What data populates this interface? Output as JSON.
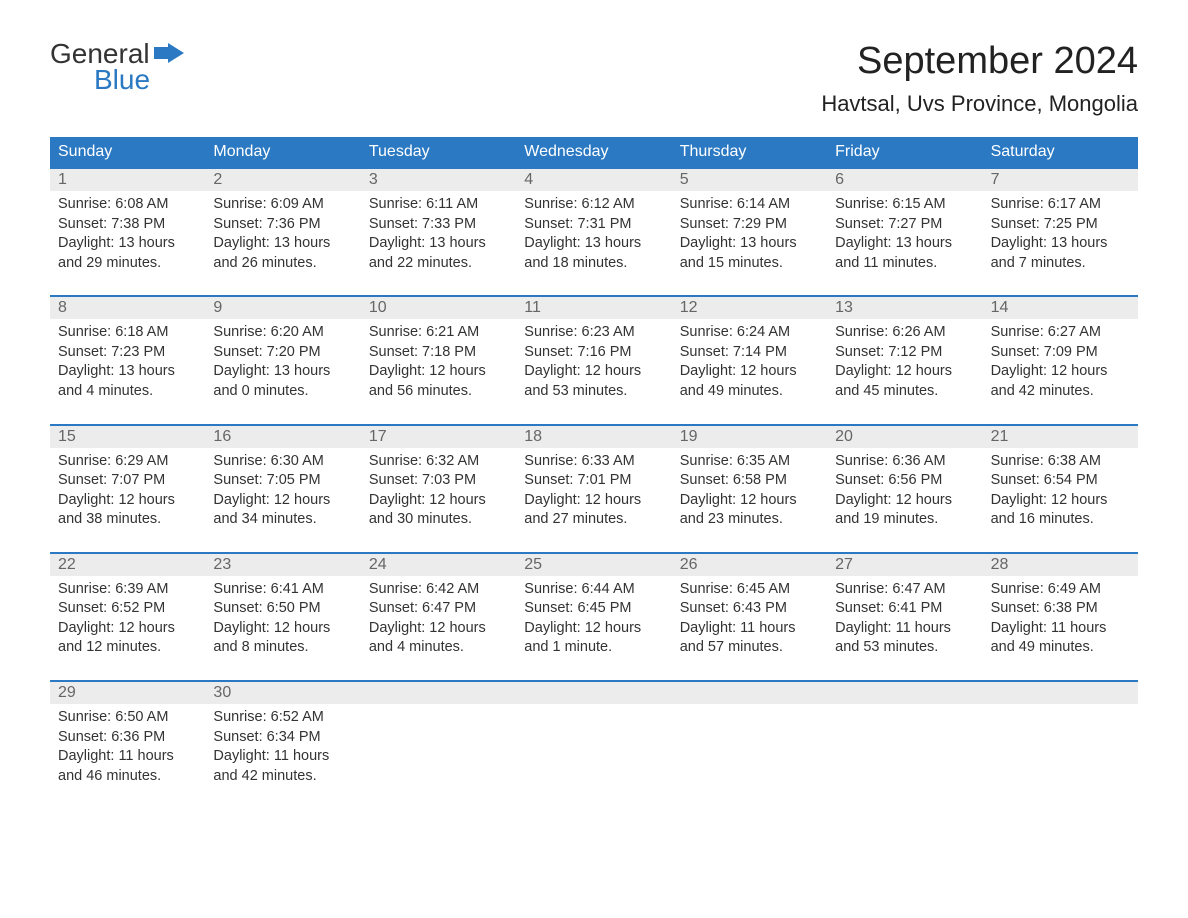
{
  "logo": {
    "line1": "General",
    "line2": "Blue"
  },
  "title": {
    "month": "September 2024",
    "location": "Havtsal, Uvs Province, Mongolia"
  },
  "colors": {
    "header_bg": "#2b79c2",
    "header_text": "#ffffff",
    "daynum_bg": "#ececec",
    "daynum_text": "#666666",
    "body_text": "#333333",
    "accent_border": "#2b79c2",
    "logo_blue": "#2b79c2",
    "page_bg": "#ffffff"
  },
  "layout": {
    "columns": 7,
    "rows": 5,
    "weekday_fontsize": 16,
    "daynum_fontsize": 16,
    "content_fontsize": 14.5,
    "title_month_fontsize": 38,
    "title_location_fontsize": 22
  },
  "weekdays": [
    "Sunday",
    "Monday",
    "Tuesday",
    "Wednesday",
    "Thursday",
    "Friday",
    "Saturday"
  ],
  "days": [
    {
      "n": 1,
      "sunrise": "6:08 AM",
      "sunset": "7:38 PM",
      "daylight": "13 hours and 29 minutes."
    },
    {
      "n": 2,
      "sunrise": "6:09 AM",
      "sunset": "7:36 PM",
      "daylight": "13 hours and 26 minutes."
    },
    {
      "n": 3,
      "sunrise": "6:11 AM",
      "sunset": "7:33 PM",
      "daylight": "13 hours and 22 minutes."
    },
    {
      "n": 4,
      "sunrise": "6:12 AM",
      "sunset": "7:31 PM",
      "daylight": "13 hours and 18 minutes."
    },
    {
      "n": 5,
      "sunrise": "6:14 AM",
      "sunset": "7:29 PM",
      "daylight": "13 hours and 15 minutes."
    },
    {
      "n": 6,
      "sunrise": "6:15 AM",
      "sunset": "7:27 PM",
      "daylight": "13 hours and 11 minutes."
    },
    {
      "n": 7,
      "sunrise": "6:17 AM",
      "sunset": "7:25 PM",
      "daylight": "13 hours and 7 minutes."
    },
    {
      "n": 8,
      "sunrise": "6:18 AM",
      "sunset": "7:23 PM",
      "daylight": "13 hours and 4 minutes."
    },
    {
      "n": 9,
      "sunrise": "6:20 AM",
      "sunset": "7:20 PM",
      "daylight": "13 hours and 0 minutes."
    },
    {
      "n": 10,
      "sunrise": "6:21 AM",
      "sunset": "7:18 PM",
      "daylight": "12 hours and 56 minutes."
    },
    {
      "n": 11,
      "sunrise": "6:23 AM",
      "sunset": "7:16 PM",
      "daylight": "12 hours and 53 minutes."
    },
    {
      "n": 12,
      "sunrise": "6:24 AM",
      "sunset": "7:14 PM",
      "daylight": "12 hours and 49 minutes."
    },
    {
      "n": 13,
      "sunrise": "6:26 AM",
      "sunset": "7:12 PM",
      "daylight": "12 hours and 45 minutes."
    },
    {
      "n": 14,
      "sunrise": "6:27 AM",
      "sunset": "7:09 PM",
      "daylight": "12 hours and 42 minutes."
    },
    {
      "n": 15,
      "sunrise": "6:29 AM",
      "sunset": "7:07 PM",
      "daylight": "12 hours and 38 minutes."
    },
    {
      "n": 16,
      "sunrise": "6:30 AM",
      "sunset": "7:05 PM",
      "daylight": "12 hours and 34 minutes."
    },
    {
      "n": 17,
      "sunrise": "6:32 AM",
      "sunset": "7:03 PM",
      "daylight": "12 hours and 30 minutes."
    },
    {
      "n": 18,
      "sunrise": "6:33 AM",
      "sunset": "7:01 PM",
      "daylight": "12 hours and 27 minutes."
    },
    {
      "n": 19,
      "sunrise": "6:35 AM",
      "sunset": "6:58 PM",
      "daylight": "12 hours and 23 minutes."
    },
    {
      "n": 20,
      "sunrise": "6:36 AM",
      "sunset": "6:56 PM",
      "daylight": "12 hours and 19 minutes."
    },
    {
      "n": 21,
      "sunrise": "6:38 AM",
      "sunset": "6:54 PM",
      "daylight": "12 hours and 16 minutes."
    },
    {
      "n": 22,
      "sunrise": "6:39 AM",
      "sunset": "6:52 PM",
      "daylight": "12 hours and 12 minutes."
    },
    {
      "n": 23,
      "sunrise": "6:41 AM",
      "sunset": "6:50 PM",
      "daylight": "12 hours and 8 minutes."
    },
    {
      "n": 24,
      "sunrise": "6:42 AM",
      "sunset": "6:47 PM",
      "daylight": "12 hours and 4 minutes."
    },
    {
      "n": 25,
      "sunrise": "6:44 AM",
      "sunset": "6:45 PM",
      "daylight": "12 hours and 1 minute."
    },
    {
      "n": 26,
      "sunrise": "6:45 AM",
      "sunset": "6:43 PM",
      "daylight": "11 hours and 57 minutes."
    },
    {
      "n": 27,
      "sunrise": "6:47 AM",
      "sunset": "6:41 PM",
      "daylight": "11 hours and 53 minutes."
    },
    {
      "n": 28,
      "sunrise": "6:49 AM",
      "sunset": "6:38 PM",
      "daylight": "11 hours and 49 minutes."
    },
    {
      "n": 29,
      "sunrise": "6:50 AM",
      "sunset": "6:36 PM",
      "daylight": "11 hours and 46 minutes."
    },
    {
      "n": 30,
      "sunrise": "6:52 AM",
      "sunset": "6:34 PM",
      "daylight": "11 hours and 42 minutes."
    }
  ],
  "labels": {
    "sunrise_prefix": "Sunrise: ",
    "sunset_prefix": "Sunset: ",
    "daylight_prefix": "Daylight: "
  },
  "start_weekday_index": 0,
  "total_cells": 35
}
